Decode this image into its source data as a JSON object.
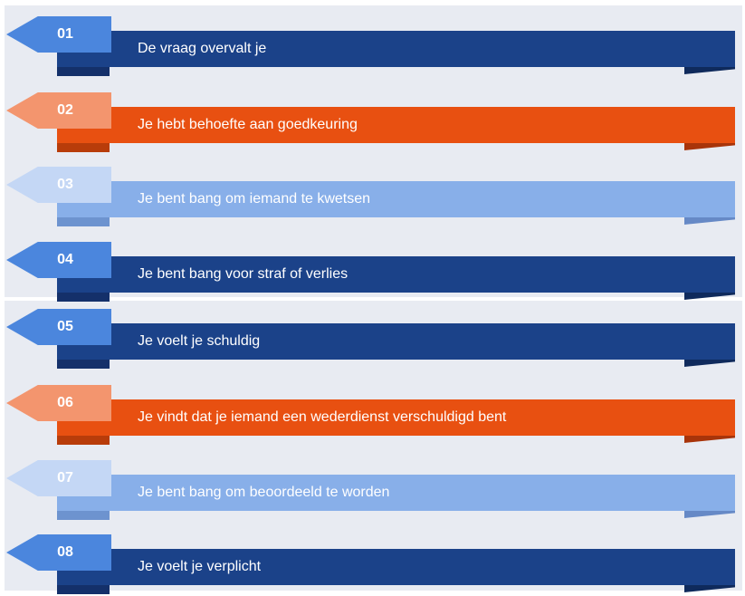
{
  "banners": [
    {
      "number": "01",
      "text": "De vraag overvalt je",
      "color": "#1b4289"
    },
    {
      "number": "02",
      "text": "Je hebt behoefte aan goedkeuring",
      "color": "#e85011"
    },
    {
      "number": "03",
      "text": "Je bent bang om iemand te kwetsen",
      "color": "#88afe9"
    },
    {
      "number": "04",
      "text": "Je bent bang voor straf of verlies",
      "color": "#1b4289"
    },
    {
      "number": "05",
      "text": "Je voelt je schuldig",
      "color": "#1b4289"
    },
    {
      "number": "06",
      "text": "Je vindt dat je iemand een wederdienst verschuldigd bent",
      "color": "#e85011"
    },
    {
      "number": "07",
      "text": "Je bent bang om beoordeeld te worden",
      "color": "#88afe9"
    },
    {
      "number": "08",
      "text": "Je voelt je verplicht",
      "color": "#1b4289"
    }
  ]
}
